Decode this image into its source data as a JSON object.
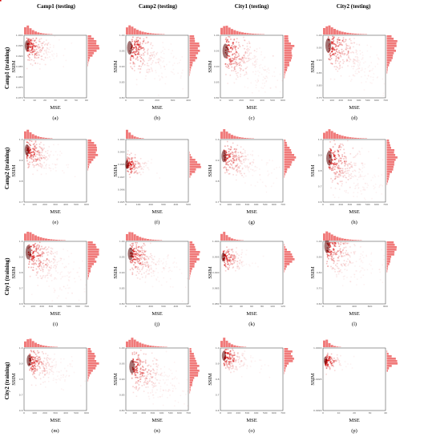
{
  "figure": {
    "columns": [
      "Camp1 (testing)",
      "Camp2 (testing)",
      "City1 (testing)",
      "City2 (testing)"
    ],
    "rows": [
      "Camp1 (training)",
      "Camp2 (training)",
      "City1 (training)",
      "City2 (training)"
    ]
  },
  "colors": {
    "density": "#d40000",
    "marginal": "#f07a7a"
  },
  "chart_data": [
    {
      "panel": "(a)",
      "type": "heatmap",
      "xlabel": "MSE",
      "ylabel": "SSIM",
      "xticks": [
        "0",
        "10",
        "20",
        "30",
        "40",
        "50",
        "60"
      ],
      "yticks": [
        "0.970",
        "0.975",
        "0.980",
        "0.985",
        "0.990",
        "0.995",
        "1.000"
      ],
      "cluster": {
        "x": 2,
        "y": 0.995
      }
    },
    {
      "panel": "(b)",
      "type": "heatmap",
      "xlabel": "MSE",
      "ylabel": "SSIM",
      "xticks": [
        "0",
        "100",
        "200",
        "300",
        "400"
      ],
      "yticks": [
        "0.80",
        "0.85",
        "0.90",
        "0.95",
        "1.00"
      ],
      "cluster": {
        "x": 20,
        "y": 0.96
      }
    },
    {
      "panel": "(c)",
      "type": "heatmap",
      "xlabel": "MSE",
      "ylabel": "SSIM",
      "xticks": [
        "0",
        "100",
        "200",
        "300",
        "400",
        "500",
        "600"
      ],
      "yticks": [
        "0.80",
        "0.85",
        "0.90",
        "0.95",
        "1.00"
      ],
      "cluster": {
        "x": 40,
        "y": 0.95
      }
    },
    {
      "panel": "(d)",
      "type": "heatmap",
      "xlabel": "MSE",
      "ylabel": "SSIM",
      "xticks": [
        "0",
        "100",
        "200",
        "300",
        "400",
        "500",
        "600",
        "700"
      ],
      "yticks": [
        "0.75",
        "0.80",
        "0.85",
        "0.90",
        "0.95",
        "1.00"
      ],
      "cluster": {
        "x": 50,
        "y": 0.96
      }
    },
    {
      "panel": "(e)",
      "type": "heatmap",
      "xlabel": "MSE",
      "ylabel": "SSIM",
      "xticks": [
        "0",
        "100",
        "200",
        "300",
        "400",
        "500",
        "600"
      ],
      "yticks": [
        "0.7",
        "0.8",
        "0.9",
        "1.0"
      ],
      "cluster": {
        "x": 20,
        "y": 0.95
      }
    },
    {
      "panel": "(f)",
      "type": "heatmap",
      "xlabel": "MSE",
      "ylabel": "SSIM",
      "xticks": [
        "0",
        "100",
        "200",
        "300",
        "400",
        "500"
      ],
      "yticks": [
        "0.995",
        "0.996",
        "0.997",
        "0.998",
        "0.999",
        "1.000"
      ],
      "cluster": {
        "x": 3,
        "y": 0.998
      }
    },
    {
      "panel": "(g)",
      "type": "heatmap",
      "xlabel": "MSE",
      "ylabel": "SSIM",
      "xticks": [
        "0",
        "100",
        "200",
        "300",
        "400",
        "500",
        "600",
        "700"
      ],
      "yticks": [
        "0.7",
        "0.8",
        "0.9",
        "1.0"
      ],
      "cluster": {
        "x": 30,
        "y": 0.92
      }
    },
    {
      "panel": "(h)",
      "type": "heatmap",
      "xlabel": "MSE",
      "ylabel": "SSIM",
      "xticks": [
        "0",
        "100",
        "200",
        "300",
        "400",
        "500",
        "600",
        "700"
      ],
      "yticks": [
        "0.6",
        "0.7",
        "0.8",
        "0.9",
        "1.0"
      ],
      "cluster": {
        "x": 60,
        "y": 0.88
      }
    },
    {
      "panel": "(i)",
      "type": "heatmap",
      "xlabel": "MSE",
      "ylabel": "SSIM",
      "xticks": [
        "0",
        "100",
        "200",
        "300",
        "400",
        "500",
        "600",
        "700"
      ],
      "yticks": [
        "0.6",
        "0.7",
        "0.8",
        "0.9",
        "1.0"
      ],
      "cluster": {
        "x": 40,
        "y": 0.93
      }
    },
    {
      "panel": "(j)",
      "type": "heatmap",
      "xlabel": "MSE",
      "ylabel": "SSIM",
      "xticks": [
        "0",
        "100",
        "200",
        "300",
        "400",
        "500"
      ],
      "yticks": [
        "0.80",
        "0.85",
        "0.90",
        "0.95",
        "1.00"
      ],
      "cluster": {
        "x": 30,
        "y": 0.96
      }
    },
    {
      "panel": "(k)",
      "type": "heatmap",
      "xlabel": "MSE",
      "ylabel": "SSIM",
      "xticks": [
        "0",
        "20",
        "40",
        "60",
        "80",
        "100",
        "120"
      ],
      "yticks": [
        "0.980",
        "0.985",
        "0.990",
        "0.995",
        "1.000"
      ],
      "cluster": {
        "x": 4,
        "y": 0.995
      }
    },
    {
      "panel": "(l)",
      "type": "heatmap",
      "xlabel": "MSE",
      "ylabel": "SSIM",
      "xticks": [
        "0",
        "200",
        "400",
        "600",
        "800"
      ],
      "yticks": [
        "0.60",
        "0.70",
        "0.80",
        "0.90",
        "1.00"
      ],
      "cluster": {
        "x": 40,
        "y": 0.97
      }
    },
    {
      "panel": "(m)",
      "type": "heatmap",
      "xlabel": "MSE",
      "ylabel": "SSIM",
      "xticks": [
        "0",
        "100",
        "200",
        "300",
        "400",
        "500",
        "600"
      ],
      "yticks": [
        "0.6",
        "0.7",
        "0.8",
        "0.9",
        "1.0"
      ],
      "cluster": {
        "x": 40,
        "y": 0.92
      }
    },
    {
      "panel": "(n)",
      "type": "heatmap",
      "xlabel": "MSE",
      "ylabel": "SSIM",
      "xticks": [
        "0",
        "100",
        "200",
        "300",
        "400",
        "500",
        "600",
        "700"
      ],
      "yticks": [
        "0.80",
        "0.85",
        "0.90",
        "0.95",
        "1.00"
      ],
      "cluster": {
        "x": 60,
        "y": 0.94
      }
    },
    {
      "panel": "(o)",
      "type": "heatmap",
      "xlabel": "MSE",
      "ylabel": "SSIM",
      "xticks": [
        "0",
        "100",
        "200",
        "300",
        "400",
        "500",
        "600",
        "700"
      ],
      "yticks": [
        "0.6",
        "0.7",
        "0.8",
        "0.9",
        "1.0"
      ],
      "cluster": {
        "x": 30,
        "y": 0.95
      }
    },
    {
      "panel": "(p)",
      "type": "heatmap",
      "xlabel": "MSE",
      "ylabel": "SSIM",
      "xticks": [
        "0",
        "10",
        "20",
        "30",
        "40"
      ],
      "yticks": [
        "0.9990",
        "0.9995",
        "1.0000"
      ],
      "cluster": {
        "x": 1,
        "y": 0.9998
      }
    }
  ]
}
